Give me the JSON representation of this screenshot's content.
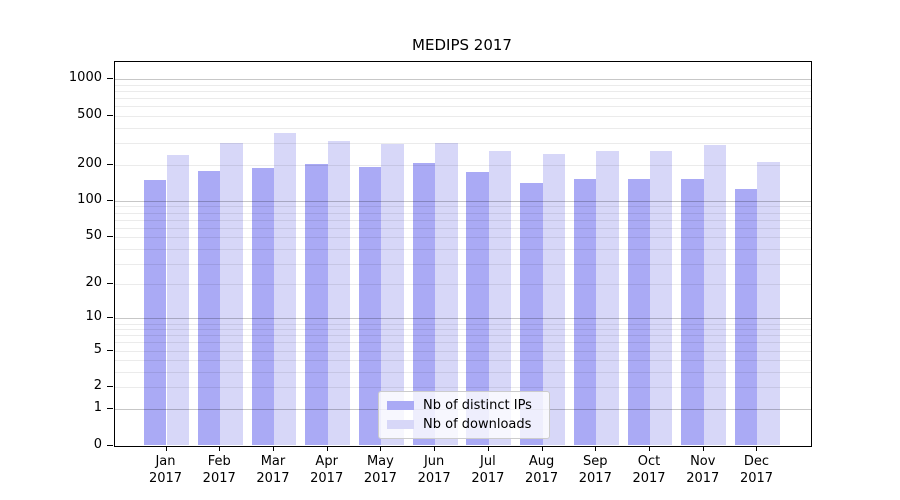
{
  "title": "MEDIPS 2017",
  "chart_data": {
    "type": "bar",
    "title": "MEDIPS 2017",
    "categories": [
      "Jan",
      "Feb",
      "Mar",
      "Apr",
      "May",
      "Jun",
      "Jul",
      "Aug",
      "Sep",
      "Oct",
      "Nov",
      "Dec"
    ],
    "category_year": "2017",
    "series": [
      {
        "name": "Nb of distinct IPs",
        "color": "#aaaaf5",
        "values": [
          150,
          178,
          187,
          202,
          189,
          205,
          175,
          142,
          153,
          151,
          153,
          126
        ]
      },
      {
        "name": "Nb of downloads",
        "color": "#d7d7f8",
        "values": [
          241,
          303,
          366,
          315,
          296,
          303,
          260,
          246,
          256,
          256,
          287,
          210
        ]
      }
    ],
    "xlabel": "",
    "ylabel": "",
    "y_scale": "log10(value+1)",
    "y_ticks": [
      1000,
      500,
      200,
      100,
      50,
      20,
      10,
      5,
      2,
      1,
      0
    ],
    "y_max": 1350,
    "grid": {
      "major_values": [
        1,
        10,
        100,
        1000
      ],
      "minor_values": [
        2,
        3,
        4,
        5,
        6,
        7,
        8,
        9,
        20,
        30,
        40,
        50,
        60,
        70,
        80,
        90,
        200,
        300,
        400,
        500,
        600,
        700,
        800,
        900
      ]
    },
    "legend_position": "lower-center",
    "colors": {
      "grid_major": "rgba(0,0,0,0.22)",
      "grid_minor": "rgba(0,0,0,0.08)",
      "axis": "#000000",
      "background": "#ffffff"
    }
  }
}
